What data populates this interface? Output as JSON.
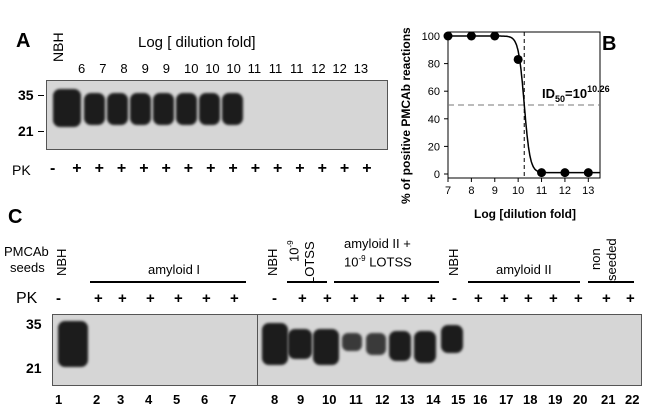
{
  "panelA": {
    "letter": "A",
    "nbh": "NBH",
    "title": "Log [ dilution fold]",
    "dilutions": [
      "6",
      "7",
      "8",
      "9",
      "9",
      "10",
      "10",
      "10",
      "11",
      "11",
      "11",
      "12",
      "12",
      "13"
    ],
    "mw": [
      "35",
      "21"
    ],
    "pk_label": "PK",
    "pk": [
      "-",
      "+",
      "+",
      "+",
      "+",
      "+",
      "+",
      "+",
      "+",
      "+",
      "+",
      "+",
      "+",
      "+",
      "+"
    ]
  },
  "panelB": {
    "letter": "B",
    "ylabel": "% of positive PMCAb reactions",
    "xlabel": "Log [dilution fold]",
    "annotation_prefix": "ID",
    "annotation_sub": "50",
    "annotation_mid": "=10",
    "annotation_sup": "10.26",
    "chart_data": {
      "type": "scatter",
      "x": [
        7,
        8,
        9,
        10,
        10.26,
        11,
        12,
        13
      ],
      "y": [
        100,
        100,
        100,
        83,
        50,
        1,
        1,
        1
      ],
      "xlim": [
        7,
        13.5
      ],
      "ylim": [
        0,
        100
      ],
      "xticks": [
        "7",
        "8",
        "9",
        "10",
        "11",
        "12",
        "13"
      ],
      "yticks": [
        "0",
        "20",
        "40",
        "60",
        "80",
        "100"
      ],
      "id50": 10.26
    }
  },
  "panelC": {
    "letter": "C",
    "seeds_label_1": "PMCAb",
    "seeds_label_2": "seeds",
    "groups": {
      "nbh1": "NBH",
      "amyloid1": "amyloid I",
      "nbh2": "NBH",
      "lotss_sup": "-9",
      "lotss_base": "10",
      "lotss": "LOTSS",
      "amyloid2_lotss_1": "amyloid II +",
      "amyloid2_lotss_2_base": "10",
      "amyloid2_lotss_2_sup": "-9",
      "amyloid2_lotss_2_rest": " LOTSS",
      "nbh3": "NBH",
      "amyloid2": "amyloid II",
      "non": "non",
      "seeded": "seeded"
    },
    "pk_label": "PK",
    "pk": [
      "-",
      "+",
      "+",
      "+",
      "+",
      "+",
      "+",
      "-",
      "+",
      "+",
      "+",
      "+",
      "+",
      "+",
      "-",
      "+",
      "+",
      "+",
      "+",
      "+",
      "+",
      "+"
    ],
    "mw": [
      "35",
      "21"
    ],
    "lanes": [
      "1",
      "2",
      "3",
      "4",
      "5",
      "6",
      "7",
      "8",
      "9",
      "10",
      "11",
      "12",
      "13",
      "14",
      "15",
      "16",
      "17",
      "18",
      "19",
      "20",
      "21",
      "22"
    ]
  }
}
